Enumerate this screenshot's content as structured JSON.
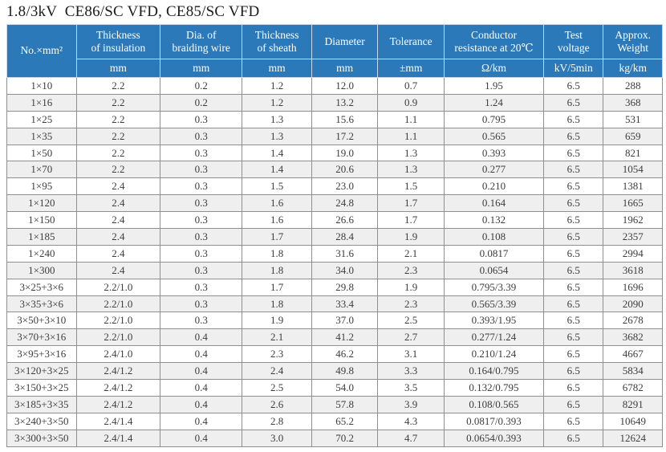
{
  "title": "1.8/3kV  CE86/SC VFD, CE85/SC VFD",
  "colors": {
    "header_bg": "#2b79b8",
    "header_text": "#ffffff",
    "row_alt_bg": "#efefef",
    "grid_line": "#8f8f8f",
    "body_text": "#3d3d3d"
  },
  "chart_data": {
    "type": "table",
    "title": "1.8/3kV  CE86/SC VFD, CE85/SC VFD",
    "columns": [
      {
        "label": "No.×mm²",
        "unit": ""
      },
      {
        "label": "Thickness\nof insulation",
        "unit": "mm"
      },
      {
        "label": "Dia. of\nbraiding wire",
        "unit": "mm"
      },
      {
        "label": "Thickness\nof sheath",
        "unit": "mm"
      },
      {
        "label": "Diameter",
        "unit": "mm"
      },
      {
        "label": "Tolerance",
        "unit": "±mm"
      },
      {
        "label": "Conductor\nresistance at 20℃",
        "unit": "Ω/km"
      },
      {
        "label": "Test\nvoltage",
        "unit": "kV/5min"
      },
      {
        "label": "Approx.\nWeight",
        "unit": "kg/km"
      }
    ],
    "rows": [
      [
        "1×10",
        "2.2",
        "0.2",
        "1.2",
        "12.0",
        "0.7",
        "1.95",
        "6.5",
        "288"
      ],
      [
        "1×16",
        "2.2",
        "0.2",
        "1.2",
        "13.2",
        "0.9",
        "1.24",
        "6.5",
        "368"
      ],
      [
        "1×25",
        "2.2",
        "0.3",
        "1.3",
        "15.6",
        "1.1",
        "0.795",
        "6.5",
        "531"
      ],
      [
        "1×35",
        "2.2",
        "0.3",
        "1.3",
        "17.2",
        "1.1",
        "0.565",
        "6.5",
        "659"
      ],
      [
        "1×50",
        "2.2",
        "0.3",
        "1.4",
        "19.0",
        "1.3",
        "0.393",
        "6.5",
        "821"
      ],
      [
        "1×70",
        "2.2",
        "0.3",
        "1.4",
        "20.6",
        "1.3",
        "0.277",
        "6.5",
        "1054"
      ],
      [
        "1×95",
        "2.4",
        "0.3",
        "1.5",
        "23.0",
        "1.5",
        "0.210",
        "6.5",
        "1381"
      ],
      [
        "1×120",
        "2.4",
        "0.3",
        "1.6",
        "24.8",
        "1.7",
        "0.164",
        "6.5",
        "1665"
      ],
      [
        "1×150",
        "2.4",
        "0.3",
        "1.6",
        "26.6",
        "1.7",
        "0.132",
        "6.5",
        "1962"
      ],
      [
        "1×185",
        "2.4",
        "0.3",
        "1.7",
        "28.4",
        "1.9",
        "0.108",
        "6.5",
        "2357"
      ],
      [
        "1×240",
        "2.4",
        "0.3",
        "1.8",
        "31.6",
        "2.1",
        "0.0817",
        "6.5",
        "2994"
      ],
      [
        "1×300",
        "2.4",
        "0.3",
        "1.8",
        "34.0",
        "2.3",
        "0.0654",
        "6.5",
        "3618"
      ],
      [
        "3×25+3×6",
        "2.2/1.0",
        "0.3",
        "1.7",
        "29.8",
        "1.9",
        "0.795/3.39",
        "6.5",
        "1696"
      ],
      [
        "3×35+3×6",
        "2.2/1.0",
        "0.3",
        "1.8",
        "33.4",
        "2.3",
        "0.565/3.39",
        "6.5",
        "2090"
      ],
      [
        "3×50+3×10",
        "2.2/1.0",
        "0.3",
        "1.9",
        "37.0",
        "2.5",
        "0.393/1.95",
        "6.5",
        "2678"
      ],
      [
        "3×70+3×16",
        "2.2/1.0",
        "0.4",
        "2.1",
        "41.2",
        "2.7",
        "0.277/1.24",
        "6.5",
        "3682"
      ],
      [
        "3×95+3×16",
        "2.4/1.0",
        "0.4",
        "2.3",
        "46.2",
        "3.1",
        "0.210/1.24",
        "6.5",
        "4667"
      ],
      [
        "3×120+3×25",
        "2.4/1.2",
        "0.4",
        "2.4",
        "49.8",
        "3.3",
        "0.164/0.795",
        "6.5",
        "5834"
      ],
      [
        "3×150+3×25",
        "2.4/1.2",
        "0.4",
        "2.5",
        "54.0",
        "3.5",
        "0.132/0.795",
        "6.5",
        "6782"
      ],
      [
        "3×185+3×35",
        "2.4/1.2",
        "0.4",
        "2.6",
        "57.8",
        "3.9",
        "0.108/0.565",
        "6.5",
        "8291"
      ],
      [
        "3×240+3×50",
        "2.4/1.4",
        "0.4",
        "2.8",
        "65.2",
        "4.3",
        "0.0817/0.393",
        "6.5",
        "10649"
      ],
      [
        "3×300+3×50",
        "2.4/1.4",
        "0.4",
        "3.0",
        "70.2",
        "4.7",
        "0.0654/0.393",
        "6.5",
        "12624"
      ]
    ]
  }
}
